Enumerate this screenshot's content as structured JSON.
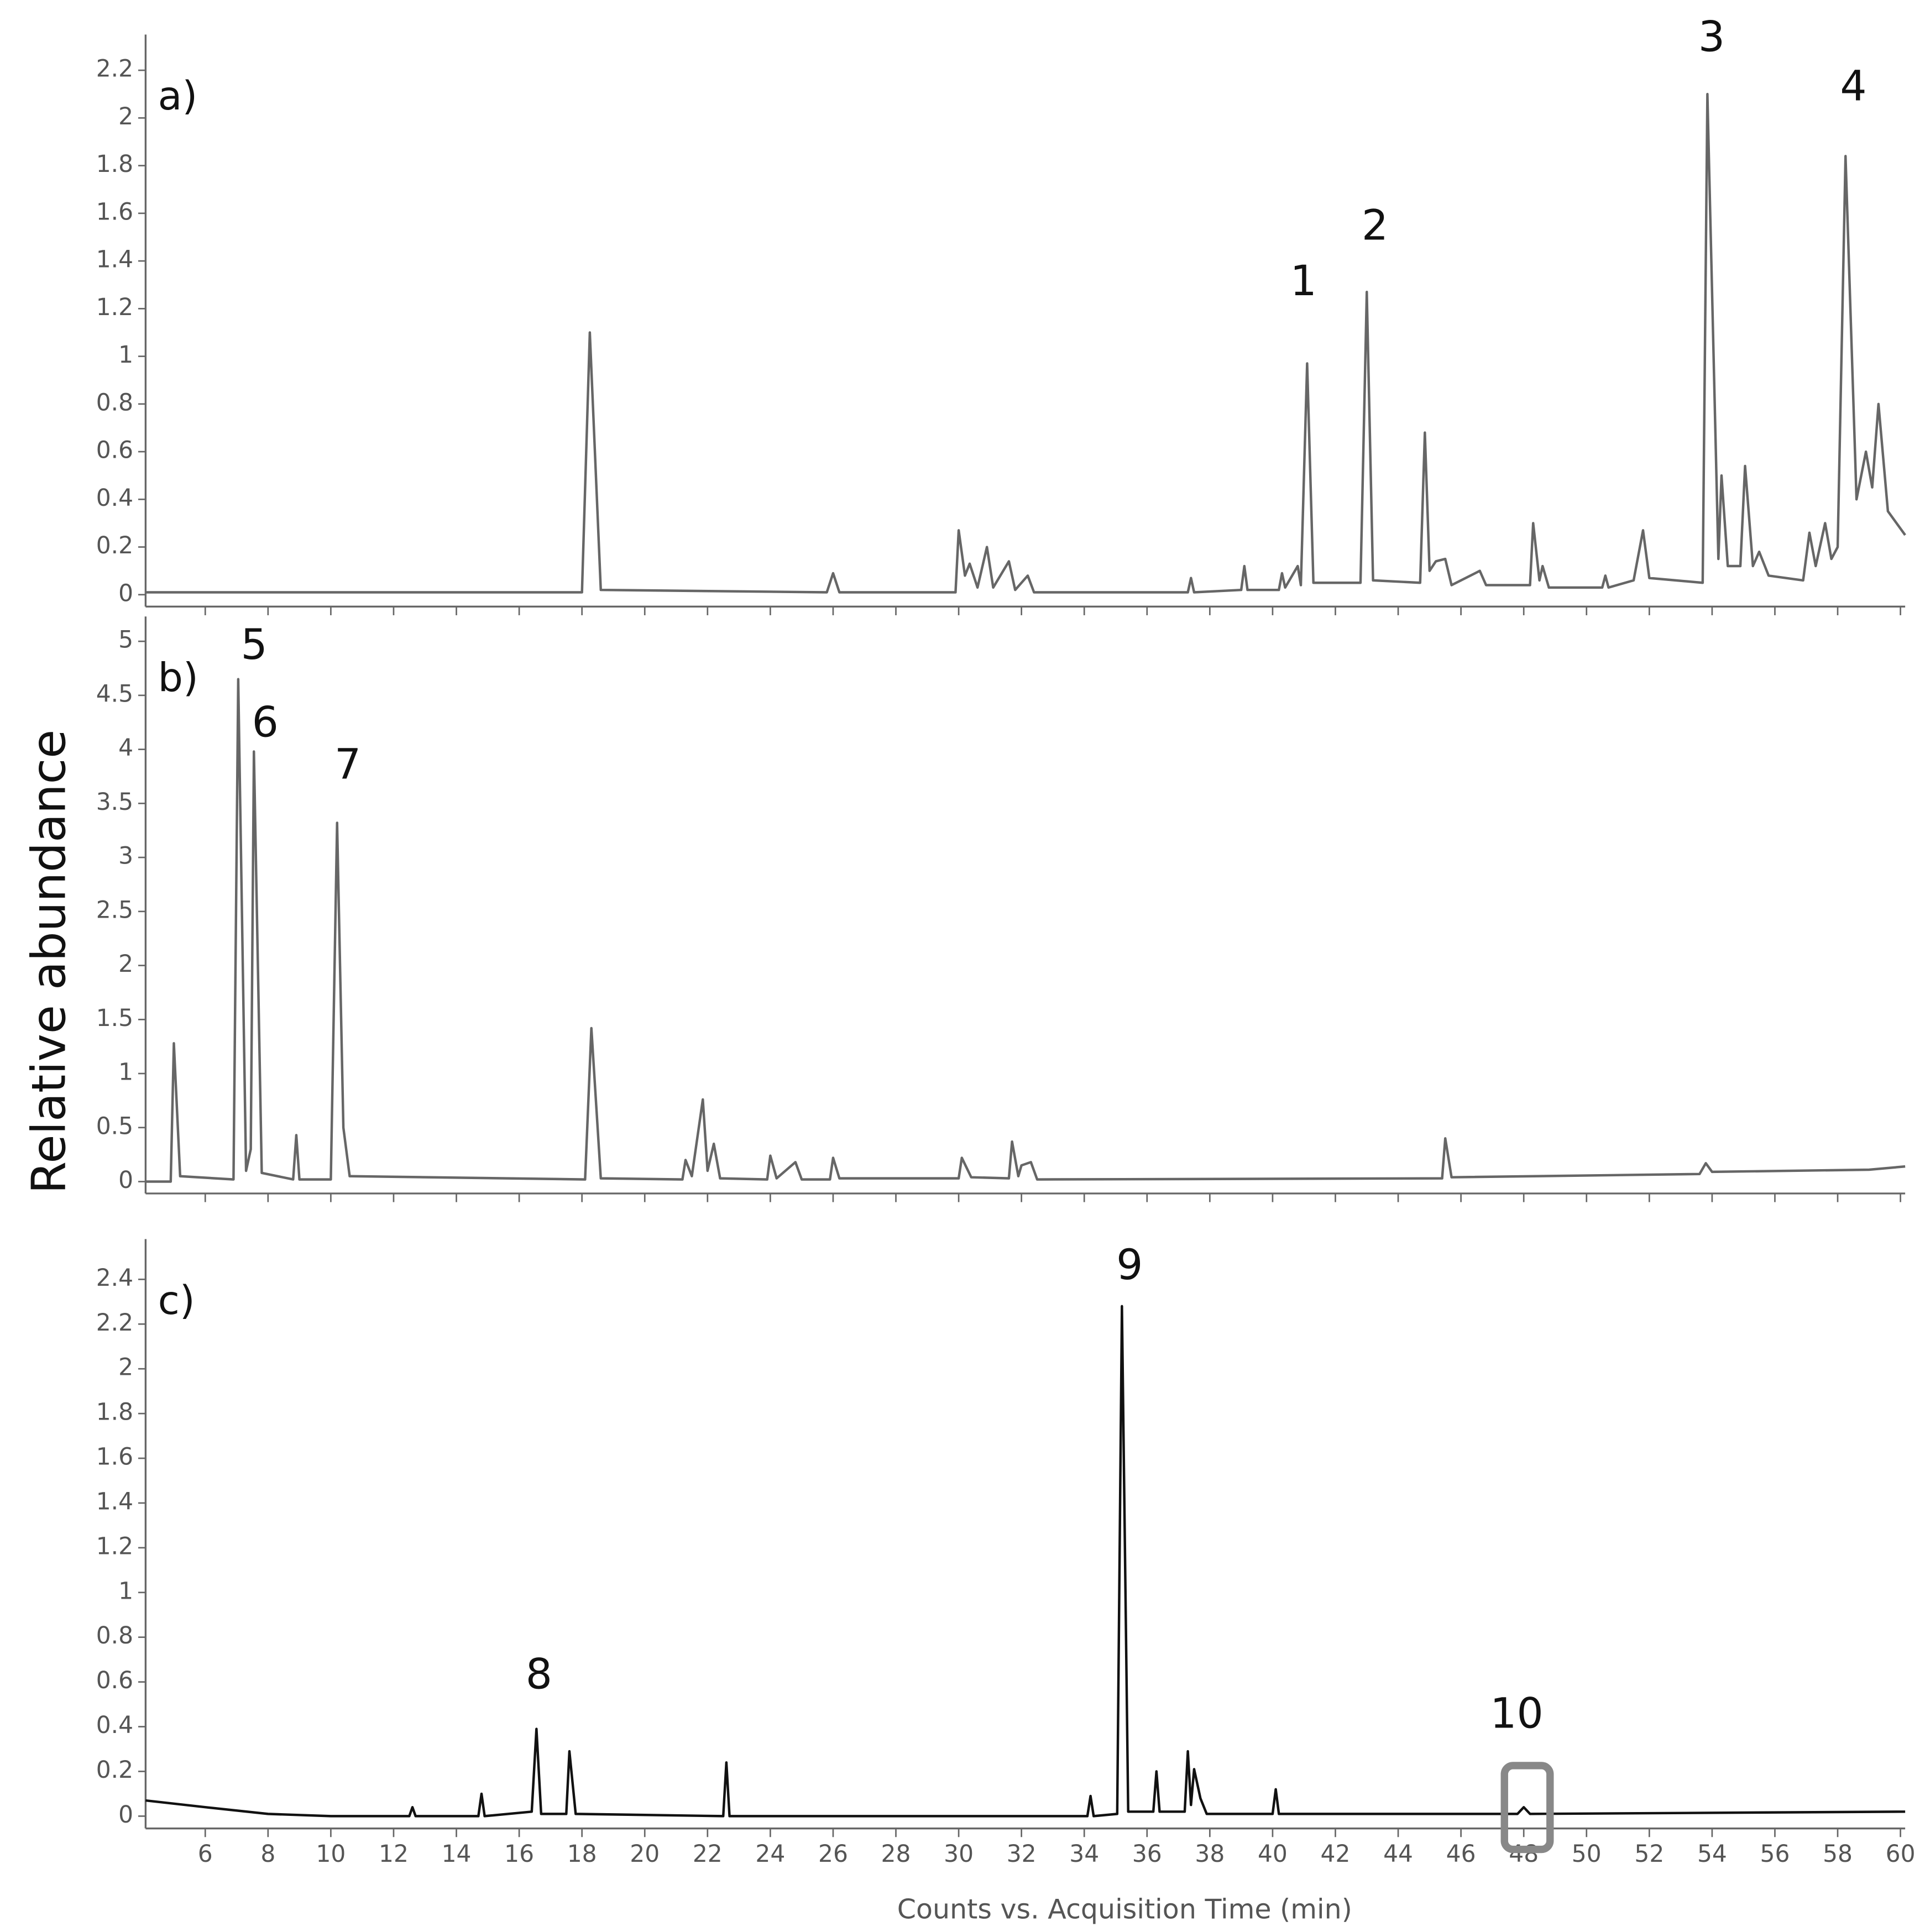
{
  "chart_data": [
    {
      "type": "line",
      "title": "a)",
      "color": "#666666",
      "xlim": [
        4.1,
        60.15
      ],
      "xticks": [
        6,
        8,
        10,
        12,
        14,
        16,
        18,
        20,
        22,
        24,
        26,
        28,
        30,
        32,
        34,
        36,
        38,
        40,
        42,
        44,
        46,
        48,
        50,
        52,
        54,
        56,
        58,
        60
      ],
      "ylim": [
        -0.05,
        2.35
      ],
      "yticks": [
        0,
        0.2,
        0.4,
        0.6,
        0.8,
        1,
        1.2,
        1.4,
        1.6,
        1.8,
        2,
        2.2
      ],
      "x": [
        4.1,
        18.0,
        18.25,
        18.6,
        25.8,
        26.0,
        26.2,
        29.9,
        30.0,
        30.2,
        30.35,
        30.6,
        30.9,
        31.1,
        31.6,
        31.8,
        32.2,
        32.4,
        37.3,
        37.4,
        37.5,
        39.0,
        39.1,
        39.2,
        40.2,
        40.3,
        40.4,
        40.8,
        40.9,
        41.1,
        41.3,
        42.8,
        43.0,
        43.2,
        44.7,
        44.85,
        45.0,
        45.2,
        45.5,
        45.7,
        46.6,
        46.8,
        48.2,
        48.3,
        48.5,
        48.6,
        48.8,
        50.5,
        50.6,
        50.7,
        51.5,
        51.8,
        52.0,
        53.7,
        53.85,
        54.2,
        54.3,
        54.5,
        54.9,
        55.05,
        55.3,
        55.5,
        55.8,
        56.9,
        57.1,
        57.3,
        57.6,
        57.8,
        58.0,
        58.25,
        58.6,
        58.9,
        59.1,
        59.3,
        59.6,
        60.15
      ],
      "values": [
        0.01,
        0.01,
        1.1,
        0.02,
        0.01,
        0.09,
        0.01,
        0.01,
        0.27,
        0.08,
        0.13,
        0.03,
        0.2,
        0.03,
        0.14,
        0.02,
        0.08,
        0.01,
        0.01,
        0.07,
        0.01,
        0.02,
        0.12,
        0.02,
        0.02,
        0.09,
        0.03,
        0.12,
        0.04,
        0.97,
        0.05,
        0.05,
        1.27,
        0.06,
        0.05,
        0.68,
        0.1,
        0.14,
        0.15,
        0.04,
        0.1,
        0.04,
        0.04,
        0.3,
        0.06,
        0.12,
        0.03,
        0.03,
        0.08,
        0.03,
        0.06,
        0.27,
        0.07,
        0.05,
        2.1,
        0.15,
        0.5,
        0.12,
        0.12,
        0.54,
        0.12,
        0.18,
        0.08,
        0.06,
        0.26,
        0.12,
        0.3,
        0.15,
        0.2,
        1.84,
        0.4,
        0.6,
        0.45,
        0.8,
        0.35,
        0.25
      ],
      "annotations": [
        "1",
        "2",
        "3",
        "4"
      ]
    },
    {
      "type": "line",
      "title": "b)",
      "color": "#666666",
      "ylabel": "Relative abundance",
      "xlim": [
        4.1,
        60.15
      ],
      "xticks": [
        6,
        8,
        10,
        12,
        14,
        16,
        18,
        20,
        22,
        24,
        26,
        28,
        30,
        32,
        34,
        36,
        38,
        40,
        42,
        44,
        46,
        48,
        50,
        52,
        54,
        56,
        58,
        60
      ],
      "ylim": [
        -0.11,
        5.23
      ],
      "yticks": [
        0,
        0.5,
        1,
        1.5,
        2,
        2.5,
        3,
        3.5,
        4,
        4.5,
        5
      ],
      "x": [
        4.1,
        4.9,
        5.0,
        5.2,
        6.9,
        7.05,
        7.3,
        7.45,
        7.55,
        7.8,
        8.8,
        8.9,
        9.0,
        10.0,
        10.2,
        10.4,
        10.6,
        18.1,
        18.3,
        18.6,
        21.2,
        21.3,
        21.5,
        21.85,
        22.0,
        22.2,
        22.4,
        23.9,
        24.0,
        24.2,
        24.8,
        25.0,
        25.9,
        26.0,
        26.2,
        30.0,
        30.1,
        30.4,
        31.6,
        31.7,
        31.9,
        32.0,
        32.3,
        32.5,
        45.4,
        45.5,
        45.7,
        53.6,
        53.8,
        54.0,
        59.0,
        60.15
      ],
      "values": [
        0,
        0,
        1.28,
        0.05,
        0.02,
        4.65,
        0.1,
        0.3,
        3.98,
        0.08,
        0.02,
        0.43,
        0.02,
        0.02,
        3.32,
        0.5,
        0.05,
        0.02,
        1.42,
        0.03,
        0.02,
        0.2,
        0.05,
        0.76,
        0.1,
        0.35,
        0.03,
        0.02,
        0.24,
        0.03,
        0.18,
        0.02,
        0.02,
        0.22,
        0.03,
        0.03,
        0.22,
        0.04,
        0.03,
        0.37,
        0.05,
        0.15,
        0.18,
        0.02,
        0.03,
        0.4,
        0.04,
        0.07,
        0.17,
        0.09,
        0.11,
        0.14
      ],
      "annotations": [
        "5",
        "6",
        "7"
      ]
    },
    {
      "type": "line",
      "title": "c)",
      "color": "#111111",
      "xlabel": "Counts vs. Acquisition Time (min)",
      "xlim": [
        4.1,
        60.15
      ],
      "xticks": [
        6,
        8,
        10,
        12,
        14,
        16,
        18,
        20,
        22,
        24,
        26,
        28,
        30,
        32,
        34,
        36,
        38,
        40,
        42,
        44,
        46,
        48,
        50,
        52,
        54,
        56,
        58,
        60
      ],
      "ylim": [
        -0.055,
        2.58
      ],
      "yticks": [
        0,
        0.2,
        0.4,
        0.6,
        0.8,
        1,
        1.2,
        1.4,
        1.6,
        1.8,
        2,
        2.2,
        2.4
      ],
      "x": [
        4.1,
        6,
        8,
        10,
        12.5,
        12.6,
        12.7,
        14.7,
        14.8,
        14.9,
        16.4,
        16.55,
        16.7,
        17.5,
        17.6,
        17.8,
        22.5,
        22.6,
        22.7,
        34.1,
        34.2,
        34.3,
        35.05,
        35.2,
        35.4,
        36.2,
        36.3,
        36.4,
        37.2,
        37.3,
        37.4,
        37.5,
        37.7,
        37.9,
        40.0,
        40.1,
        40.2,
        47.8,
        48.0,
        48.2,
        60.15
      ],
      "values": [
        0.07,
        0.04,
        0.01,
        0,
        0,
        0.04,
        0,
        0,
        0.1,
        0,
        0.02,
        0.39,
        0.01,
        0.01,
        0.29,
        0.01,
        0,
        0.24,
        0,
        0,
        0.09,
        0,
        0.01,
        2.28,
        0.02,
        0.02,
        0.2,
        0.02,
        0.02,
        0.29,
        0.05,
        0.21,
        0.08,
        0.01,
        0.01,
        0.12,
        0.01,
        0.01,
        0.04,
        0.01,
        0.02
      ],
      "annotations": [
        "8",
        "9",
        "10"
      ]
    }
  ]
}
